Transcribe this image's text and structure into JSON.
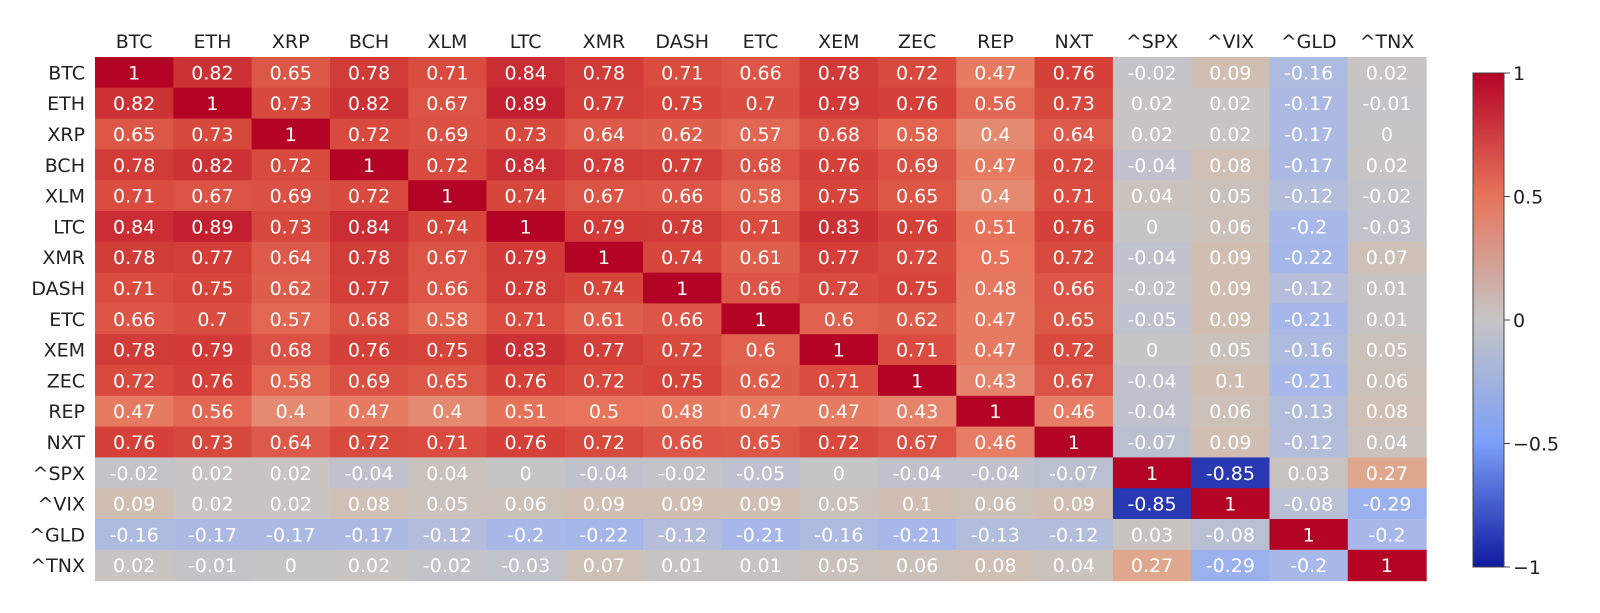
{
  "chart_data": {
    "type": "heatmap",
    "title": "",
    "xlabel": "",
    "ylabel": "",
    "labels": [
      "BTC",
      "ETH",
      "XRP",
      "BCH",
      "XLM",
      "LTC",
      "XMR",
      "DASH",
      "ETC",
      "XEM",
      "ZEC",
      "REP",
      "NXT",
      "^SPX",
      "^VIX",
      "^GLD",
      "^TNX"
    ],
    "matrix": [
      [
        1,
        0.82,
        0.65,
        0.78,
        0.71,
        0.84,
        0.78,
        0.71,
        0.66,
        0.78,
        0.72,
        0.47,
        0.76,
        -0.02,
        0.09,
        -0.16,
        0.02
      ],
      [
        0.82,
        1,
        0.73,
        0.82,
        0.67,
        0.89,
        0.77,
        0.75,
        0.7,
        0.79,
        0.76,
        0.56,
        0.73,
        0.02,
        0.02,
        -0.17,
        -0.01
      ],
      [
        0.65,
        0.73,
        1,
        0.72,
        0.69,
        0.73,
        0.64,
        0.62,
        0.57,
        0.68,
        0.58,
        0.4,
        0.64,
        0.02,
        0.02,
        -0.17,
        0
      ],
      [
        0.78,
        0.82,
        0.72,
        1,
        0.72,
        0.84,
        0.78,
        0.77,
        0.68,
        0.76,
        0.69,
        0.47,
        0.72,
        -0.04,
        0.08,
        -0.17,
        0.02
      ],
      [
        0.71,
        0.67,
        0.69,
        0.72,
        1,
        0.74,
        0.67,
        0.66,
        0.58,
        0.75,
        0.65,
        0.4,
        0.71,
        0.04,
        0.05,
        -0.12,
        -0.02
      ],
      [
        0.84,
        0.89,
        0.73,
        0.84,
        0.74,
        1,
        0.79,
        0.78,
        0.71,
        0.83,
        0.76,
        0.51,
        0.76,
        0,
        0.06,
        -0.2,
        -0.03
      ],
      [
        0.78,
        0.77,
        0.64,
        0.78,
        0.67,
        0.79,
        1,
        0.74,
        0.61,
        0.77,
        0.72,
        0.5,
        0.72,
        -0.04,
        0.09,
        -0.22,
        0.07
      ],
      [
        0.71,
        0.75,
        0.62,
        0.77,
        0.66,
        0.78,
        0.74,
        1,
        0.66,
        0.72,
        0.75,
        0.48,
        0.66,
        -0.02,
        0.09,
        -0.12,
        0.01
      ],
      [
        0.66,
        0.7,
        0.57,
        0.68,
        0.58,
        0.71,
        0.61,
        0.66,
        1,
        0.6,
        0.62,
        0.47,
        0.65,
        -0.05,
        0.09,
        -0.21,
        0.01
      ],
      [
        0.78,
        0.79,
        0.68,
        0.76,
        0.75,
        0.83,
        0.77,
        0.72,
        0.6,
        1,
        0.71,
        0.47,
        0.72,
        0,
        0.05,
        -0.16,
        0.05
      ],
      [
        0.72,
        0.76,
        0.58,
        0.69,
        0.65,
        0.76,
        0.72,
        0.75,
        0.62,
        0.71,
        1,
        0.43,
        0.67,
        -0.04,
        0.1,
        -0.21,
        0.06
      ],
      [
        0.47,
        0.56,
        0.4,
        0.47,
        0.4,
        0.51,
        0.5,
        0.48,
        0.47,
        0.47,
        0.43,
        1,
        0.46,
        -0.04,
        0.06,
        -0.13,
        0.08
      ],
      [
        0.76,
        0.73,
        0.64,
        0.72,
        0.71,
        0.76,
        0.72,
        0.66,
        0.65,
        0.72,
        0.67,
        0.46,
        1,
        -0.07,
        0.09,
        -0.12,
        0.04
      ],
      [
        -0.02,
        0.02,
        0.02,
        -0.04,
        0.04,
        0,
        -0.04,
        -0.02,
        -0.05,
        0,
        -0.04,
        -0.04,
        -0.07,
        1,
        -0.85,
        0.03,
        0.27
      ],
      [
        0.09,
        0.02,
        0.02,
        0.08,
        0.05,
        0.06,
        0.09,
        0.09,
        0.09,
        0.05,
        0.1,
        0.06,
        0.09,
        -0.85,
        1,
        -0.08,
        -0.29
      ],
      [
        -0.16,
        -0.17,
        -0.17,
        -0.17,
        -0.12,
        -0.2,
        -0.22,
        -0.12,
        -0.21,
        -0.16,
        -0.21,
        -0.13,
        -0.12,
        0.03,
        -0.08,
        1,
        -0.2
      ],
      [
        0.02,
        -0.01,
        0,
        0.02,
        -0.02,
        -0.03,
        0.07,
        0.01,
        0.01,
        0.05,
        0.06,
        0.08,
        0.04,
        0.27,
        -0.29,
        -0.2,
        1
      ]
    ],
    "zlim": [
      -1,
      1
    ],
    "colorscale": "coolwarm",
    "colorbar": {
      "ticks": [
        1,
        0.5,
        0,
        -0.5,
        -1
      ],
      "tick_labels": [
        "1",
        "0.5",
        "0",
        "−0.5",
        "−1"
      ]
    },
    "x_axis_position": "top",
    "legend": "right",
    "grid": false
  }
}
